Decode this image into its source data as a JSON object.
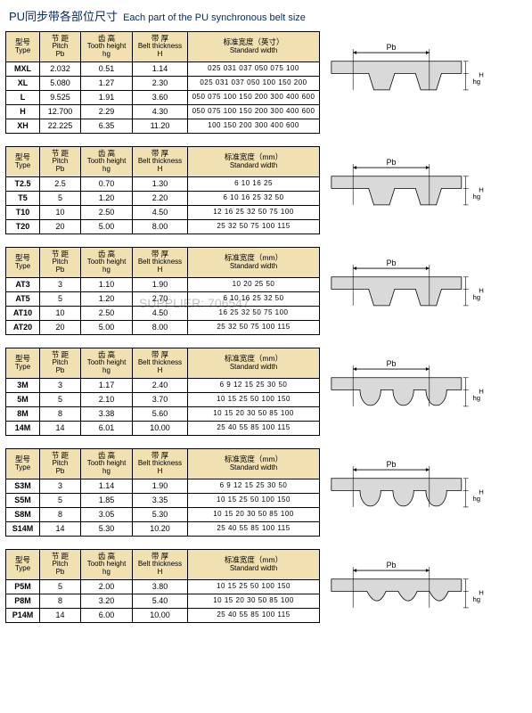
{
  "title": {
    "cn": "PU同步带各部位尺寸",
    "en": "Each part of the PU synchronous belt size"
  },
  "headers": {
    "type_cn": "型号",
    "type_en": "Type",
    "pitch_cn": "节 距",
    "pitch_en": "Pitch",
    "pitch_sub": "Pb",
    "tooth_cn": "齿 高",
    "tooth_en": "Tooth height",
    "tooth_sub": "hg",
    "thick_cn": "带 厚",
    "thick_en": "Belt thickness",
    "thick_sub": "H",
    "std1_cn": "标准宽度（英寸）",
    "std1_en": "Standard width",
    "std2_cn": "标准宽度（mm）",
    "std2_en": "Standard width"
  },
  "watermark_text": "SUPPLIER: 706547",
  "tables": [
    {
      "std_unit": "std1",
      "rows": [
        {
          "type": "MXL",
          "pitch": "2.032",
          "tooth": "0.51",
          "thick": "1.14",
          "std": "025 031 037 050 075 100"
        },
        {
          "type": "XL",
          "pitch": "5.080",
          "tooth": "1.27",
          "thick": "2.30",
          "std": "025 031 037 050 100 150 200"
        },
        {
          "type": "L",
          "pitch": "9.525",
          "tooth": "1.91",
          "thick": "3.60",
          "std": "050 075 100 150 200 300 400 600"
        },
        {
          "type": "H",
          "pitch": "12.700",
          "tooth": "2.29",
          "thick": "4.30",
          "std": "050 075 100 150 200 300 400 600"
        },
        {
          "type": "XH",
          "pitch": "22.225",
          "tooth": "6.35",
          "thick": "11.20",
          "std": "100 150 200 300 400 600"
        }
      ],
      "profile": "trap"
    },
    {
      "std_unit": "std2",
      "rows": [
        {
          "type": "T2.5",
          "pitch": "2.5",
          "tooth": "0.70",
          "thick": "1.30",
          "std": "6 10 16 25"
        },
        {
          "type": "T5",
          "pitch": "5",
          "tooth": "1.20",
          "thick": "2.20",
          "std": "6 10 16 25 32 50"
        },
        {
          "type": "T10",
          "pitch": "10",
          "tooth": "2.50",
          "thick": "4.50",
          "std": "12 16 25 32 50 75 100"
        },
        {
          "type": "T20",
          "pitch": "20",
          "tooth": "5.00",
          "thick": "8.00",
          "std": "25 32 50 75 100 115"
        }
      ],
      "profile": "trap"
    },
    {
      "std_unit": "std2",
      "rows": [
        {
          "type": "AT3",
          "pitch": "3",
          "tooth": "1.10",
          "thick": "1.90",
          "std": "10 20 25 50"
        },
        {
          "type": "AT5",
          "pitch": "5",
          "tooth": "1.20",
          "thick": "2.70",
          "std": "6 10 16 25 32 50"
        },
        {
          "type": "AT10",
          "pitch": "10",
          "tooth": "2.50",
          "thick": "4.50",
          "std": "16 25 32 50 75 100"
        },
        {
          "type": "AT20",
          "pitch": "20",
          "tooth": "5.00",
          "thick": "8.00",
          "std": "25 32 50 75 100 115"
        }
      ],
      "profile": "trap_wide",
      "watermark": true
    },
    {
      "std_unit": "std2",
      "rows": [
        {
          "type": "3M",
          "pitch": "3",
          "tooth": "1.17",
          "thick": "2.40",
          "std": "6 9 12 15 25 30 50"
        },
        {
          "type": "5M",
          "pitch": "5",
          "tooth": "2.10",
          "thick": "3.70",
          "std": "10 15 25 50 100 150"
        },
        {
          "type": "8M",
          "pitch": "8",
          "tooth": "3.38",
          "thick": "5.60",
          "std": "10 15 20 30 50 85 100"
        },
        {
          "type": "14M",
          "pitch": "14",
          "tooth": "6.01",
          "thick": "10.00",
          "std": "25 40 55 85 100 115"
        }
      ],
      "profile": "round"
    },
    {
      "std_unit": "std2",
      "rows": [
        {
          "type": "S3M",
          "pitch": "3",
          "tooth": "1.14",
          "thick": "1.90",
          "std": "6 9 12 15 25 30 50"
        },
        {
          "type": "S5M",
          "pitch": "5",
          "tooth": "1.85",
          "thick": "3.35",
          "std": "10 15 25 50 100 150"
        },
        {
          "type": "S8M",
          "pitch": "8",
          "tooth": "3.05",
          "thick": "5.30",
          "std": "10 15 20 30 50 85 100"
        },
        {
          "type": "S14M",
          "pitch": "14",
          "tooth": "5.30",
          "thick": "10.20",
          "std": "25 40 55 85 100 115"
        }
      ],
      "profile": "round"
    },
    {
      "std_unit": "std2",
      "rows": [
        {
          "type": "P5M",
          "pitch": "5",
          "tooth": "2.00",
          "thick": "3.80",
          "std": "10 15 25 50 100 150"
        },
        {
          "type": "P8M",
          "pitch": "8",
          "tooth": "3.20",
          "thick": "5.40",
          "std": "10 15 20 30 50 85 100"
        },
        {
          "type": "P14M",
          "pitch": "14",
          "tooth": "6.00",
          "thick": "10.00",
          "std": "25 40 55 85 100 115"
        }
      ],
      "profile": "para"
    }
  ],
  "diagram_labels": {
    "pb": "Pb",
    "hg": "hg",
    "h": "H"
  },
  "colors": {
    "header_bg": "#f0e0b2",
    "belt_fill": "#d9d9d9",
    "line": "#000000",
    "title": "#0a2a6b"
  }
}
